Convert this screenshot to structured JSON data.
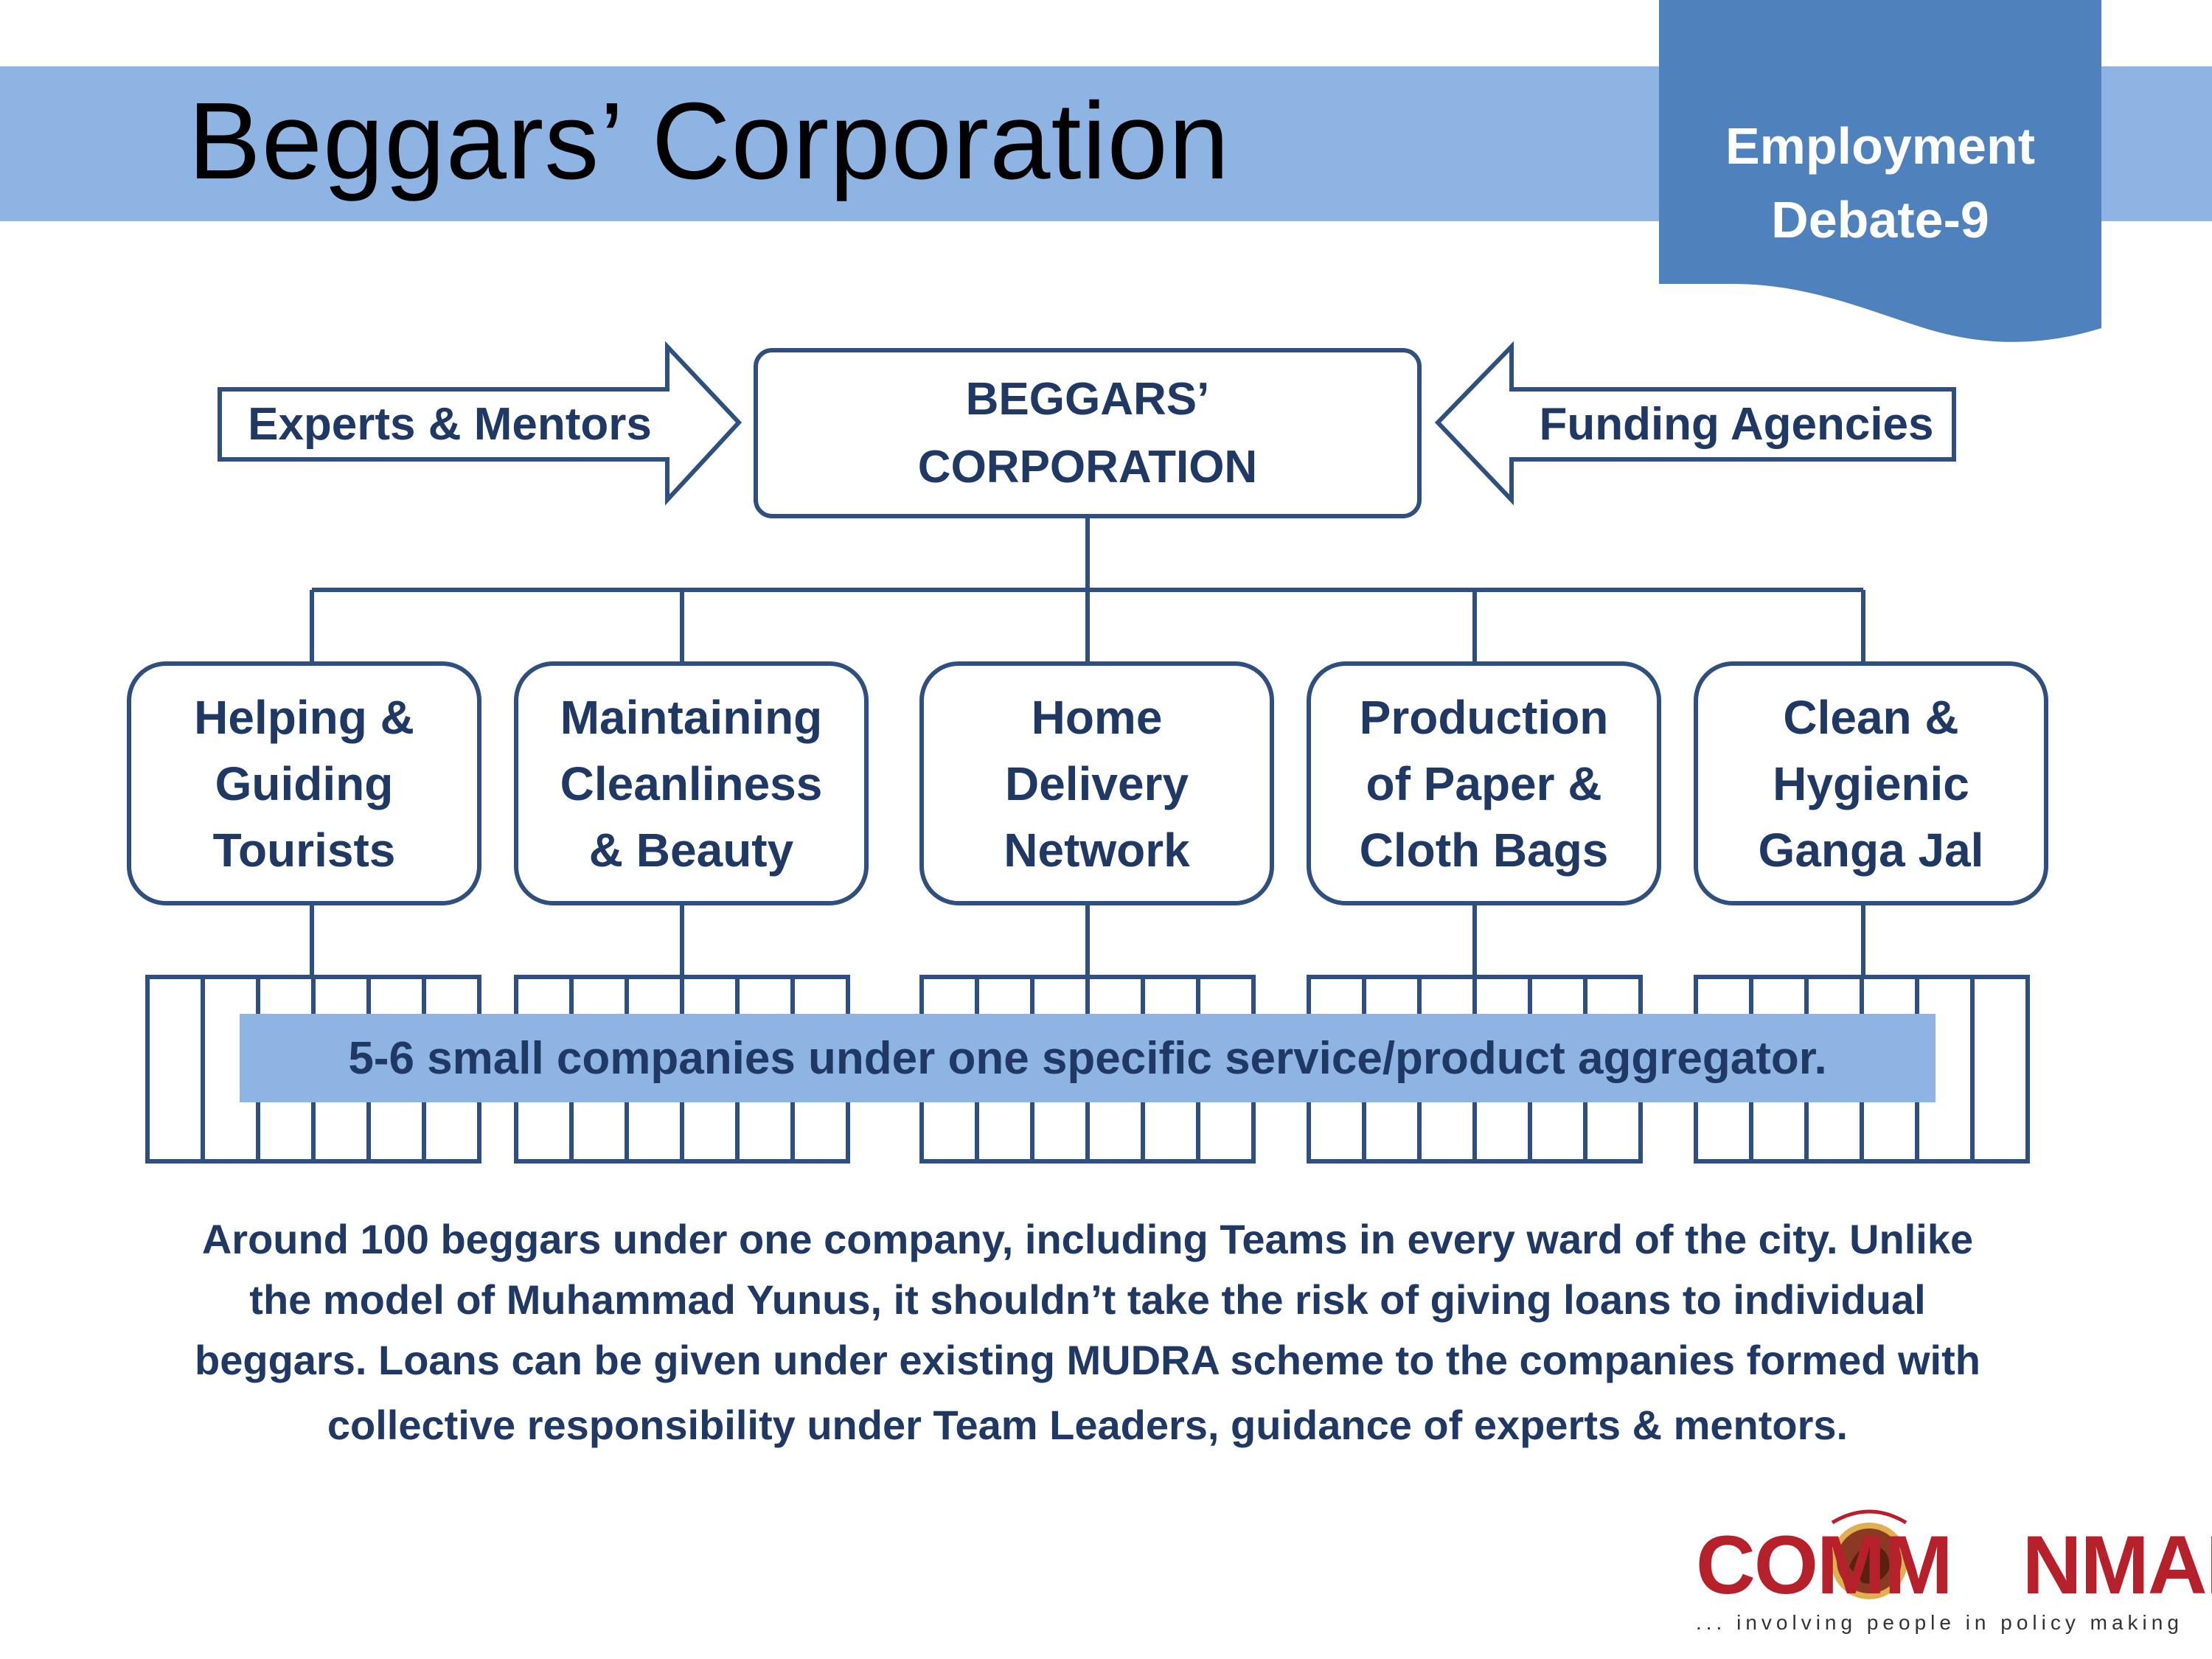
{
  "header": {
    "title": "Beggars’ Corporation",
    "tag_line1": "Employment",
    "tag_line2": "Debate-9"
  },
  "top": {
    "left_arrow_label": "Experts & Mentors",
    "right_arrow_label": "Funding Agencies",
    "center_line1": "BEGGARS’",
    "center_line2": "CORPORATION"
  },
  "services": [
    {
      "line1": "Helping &",
      "line2": "Guiding",
      "line3": "Tourists"
    },
    {
      "line1": "Maintaining",
      "line2": "Cleanliness",
      "line3": "& Beauty"
    },
    {
      "line1": "Home",
      "line2": "Delivery",
      "line3": "Network"
    },
    {
      "line1": "Production",
      "line2": "of Paper &",
      "line3": "Cloth Bags"
    },
    {
      "line1": "Clean &",
      "line2": "Hygienic",
      "line3": "Ganga Jal"
    }
  ],
  "banner": "5-6 small companies under one specific service/product aggregator.",
  "caption": {
    "line1": "Around 100 beggars under one company, including Teams in every ward of the city.  Unlike",
    "line2": "the model of Muhammad Yunus, it shouldn’t take the risk of giving loans to individual",
    "line3": "beggars. Loans can be given under existing MUDRA scheme to the companies formed with",
    "line4": "collective responsibility under Team Leaders, guidance of experts & mentors."
  },
  "logo": {
    "wordmark_left": "COMM",
    "wordmark_right": "NMAN",
    "tagline": "... involving people in policy making"
  },
  "colors": {
    "band": "#8eb4e3",
    "tag": "#4f81bd",
    "outline": "#2f4f7f",
    "text": "#1f3864",
    "banner": "#8eb4e3",
    "logo_red": "#b5202b"
  }
}
